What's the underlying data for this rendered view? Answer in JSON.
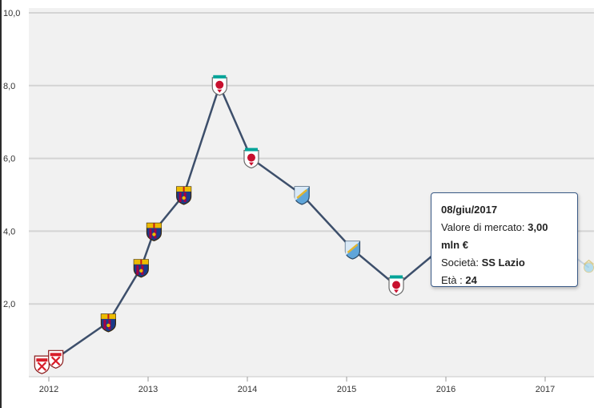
{
  "chart_data": {
    "type": "line",
    "y_ticks": [
      "10,0",
      "8,0",
      "6,0",
      "4,0",
      "2,0"
    ],
    "y_tick_values": [
      10,
      8,
      6,
      4,
      2
    ],
    "x_ticks": [
      "2012",
      "2013",
      "2014",
      "2015",
      "2016",
      "2017"
    ],
    "x_tick_values": [
      2012,
      2013,
      2014,
      2015,
      2016,
      2017
    ],
    "ylim": [
      0,
      10
    ],
    "xlim": [
      2011.85,
      2017.5
    ],
    "grid": "horizontal",
    "line_color": "#3d4f6b",
    "series": [
      {
        "points": [
          {
            "x": 2011.93,
            "y": 0.35,
            "club": "sevilla"
          },
          {
            "x": 2012.07,
            "y": 0.5,
            "club": "sevilla"
          },
          {
            "x": 2012.6,
            "y": 1.5,
            "club": "barcelona"
          },
          {
            "x": 2012.93,
            "y": 3.0,
            "club": "barcelona"
          },
          {
            "x": 2013.06,
            "y": 4.0,
            "club": "barcelona"
          },
          {
            "x": 2013.36,
            "y": 5.0,
            "club": "barcelona"
          },
          {
            "x": 2013.72,
            "y": 8.0,
            "club": "liverpool"
          },
          {
            "x": 2014.04,
            "y": 6.0,
            "club": "liverpool"
          },
          {
            "x": 2014.55,
            "y": 5.0,
            "club": "malaga"
          },
          {
            "x": 2015.06,
            "y": 3.5,
            "club": "malaga"
          },
          {
            "x": 2015.5,
            "y": 2.5,
            "club": "liverpool"
          },
          {
            "x": 2016.05,
            "y": 3.75,
            "club": "lazio"
          },
          {
            "x": 2016.95,
            "y": 4.0,
            "club": "lazio"
          },
          {
            "x": 2017.44,
            "y": 3.0,
            "club": "lazio"
          }
        ]
      }
    ],
    "club_colors": {
      "sevilla": "#d81e2a",
      "barcelona": "#a50044",
      "barcelona_blue": "#1a3a8a",
      "barcelona_gold": "#edbb00",
      "liverpool": "#c8102e",
      "liverpool_green": "#00a398",
      "malaga": "#5fa5d9",
      "lazio": "#87ceeb"
    }
  },
  "tooltip": {
    "date": "08/giu/2017",
    "value_label": "Valore di mercato: ",
    "value": "3,00 mln €",
    "club_label": "Società: ",
    "club": "SS Lazio",
    "age_label": "Età : ",
    "age": "24"
  }
}
